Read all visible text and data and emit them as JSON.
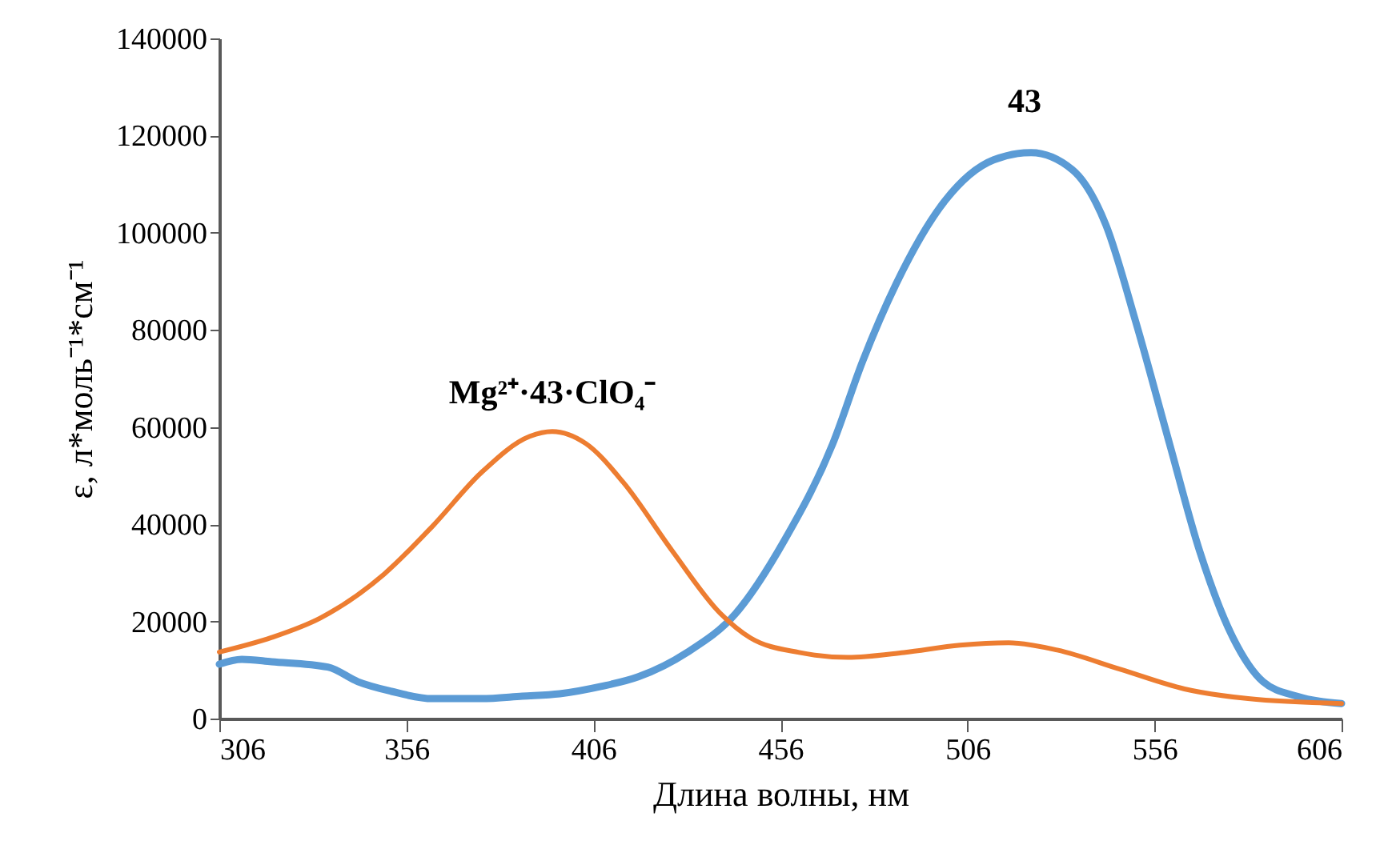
{
  "chart_data": {
    "type": "line",
    "xlabel": "Длина волны, нм",
    "ylabel": "ε, л*моль⁻¹*см⁻¹",
    "xlim": [
      306,
      606
    ],
    "xticks": [
      306,
      356,
      406,
      456,
      506,
      556,
      606
    ],
    "ylim": [
      0,
      140000
    ],
    "yticks": [
      0,
      20000,
      40000,
      60000,
      80000,
      100000,
      120000,
      140000
    ],
    "grid": false,
    "marker": "none",
    "line_style": "solid",
    "annotations": [
      "43",
      "Mg²⁺·43·ClO₄⁻"
    ],
    "series": [
      {
        "color": "#5b9bd5",
        "x": [
          306,
          312,
          320,
          335,
          343,
          352,
          363,
          376,
          387,
          397,
          408,
          418,
          431,
          444,
          457,
          470,
          478,
          487,
          500,
          513,
          523,
          534,
          543,
          551,
          560,
          568,
          577,
          585,
          594,
          606
        ],
        "values": [
          11200,
          12200,
          11700,
          10600,
          7600,
          5600,
          4100,
          4100,
          4600,
          5100,
          6600,
          8600,
          13600,
          21600,
          36600,
          56600,
          73600,
          89600,
          106600,
          115000,
          116500,
          113000,
          101600,
          81600,
          56600,
          34600,
          16600,
          7600,
          4600,
          3100
        ]
      },
      {
        "color": "#ed7d31",
        "x": [
          306,
          320,
          333,
          350,
          363,
          376,
          389,
          395,
          404,
          414,
          427,
          440,
          448,
          461,
          474,
          489,
          504,
          517,
          530,
          547,
          564,
          581,
          606
        ],
        "values": [
          13700,
          16700,
          20700,
          29700,
          39600,
          50600,
          58100,
          59100,
          56600,
          48600,
          34600,
          21600,
          16600,
          13600,
          12600,
          13600,
          15100,
          15600,
          14100,
          10100,
          6100,
          4100,
          3100
        ]
      }
    ]
  }
}
